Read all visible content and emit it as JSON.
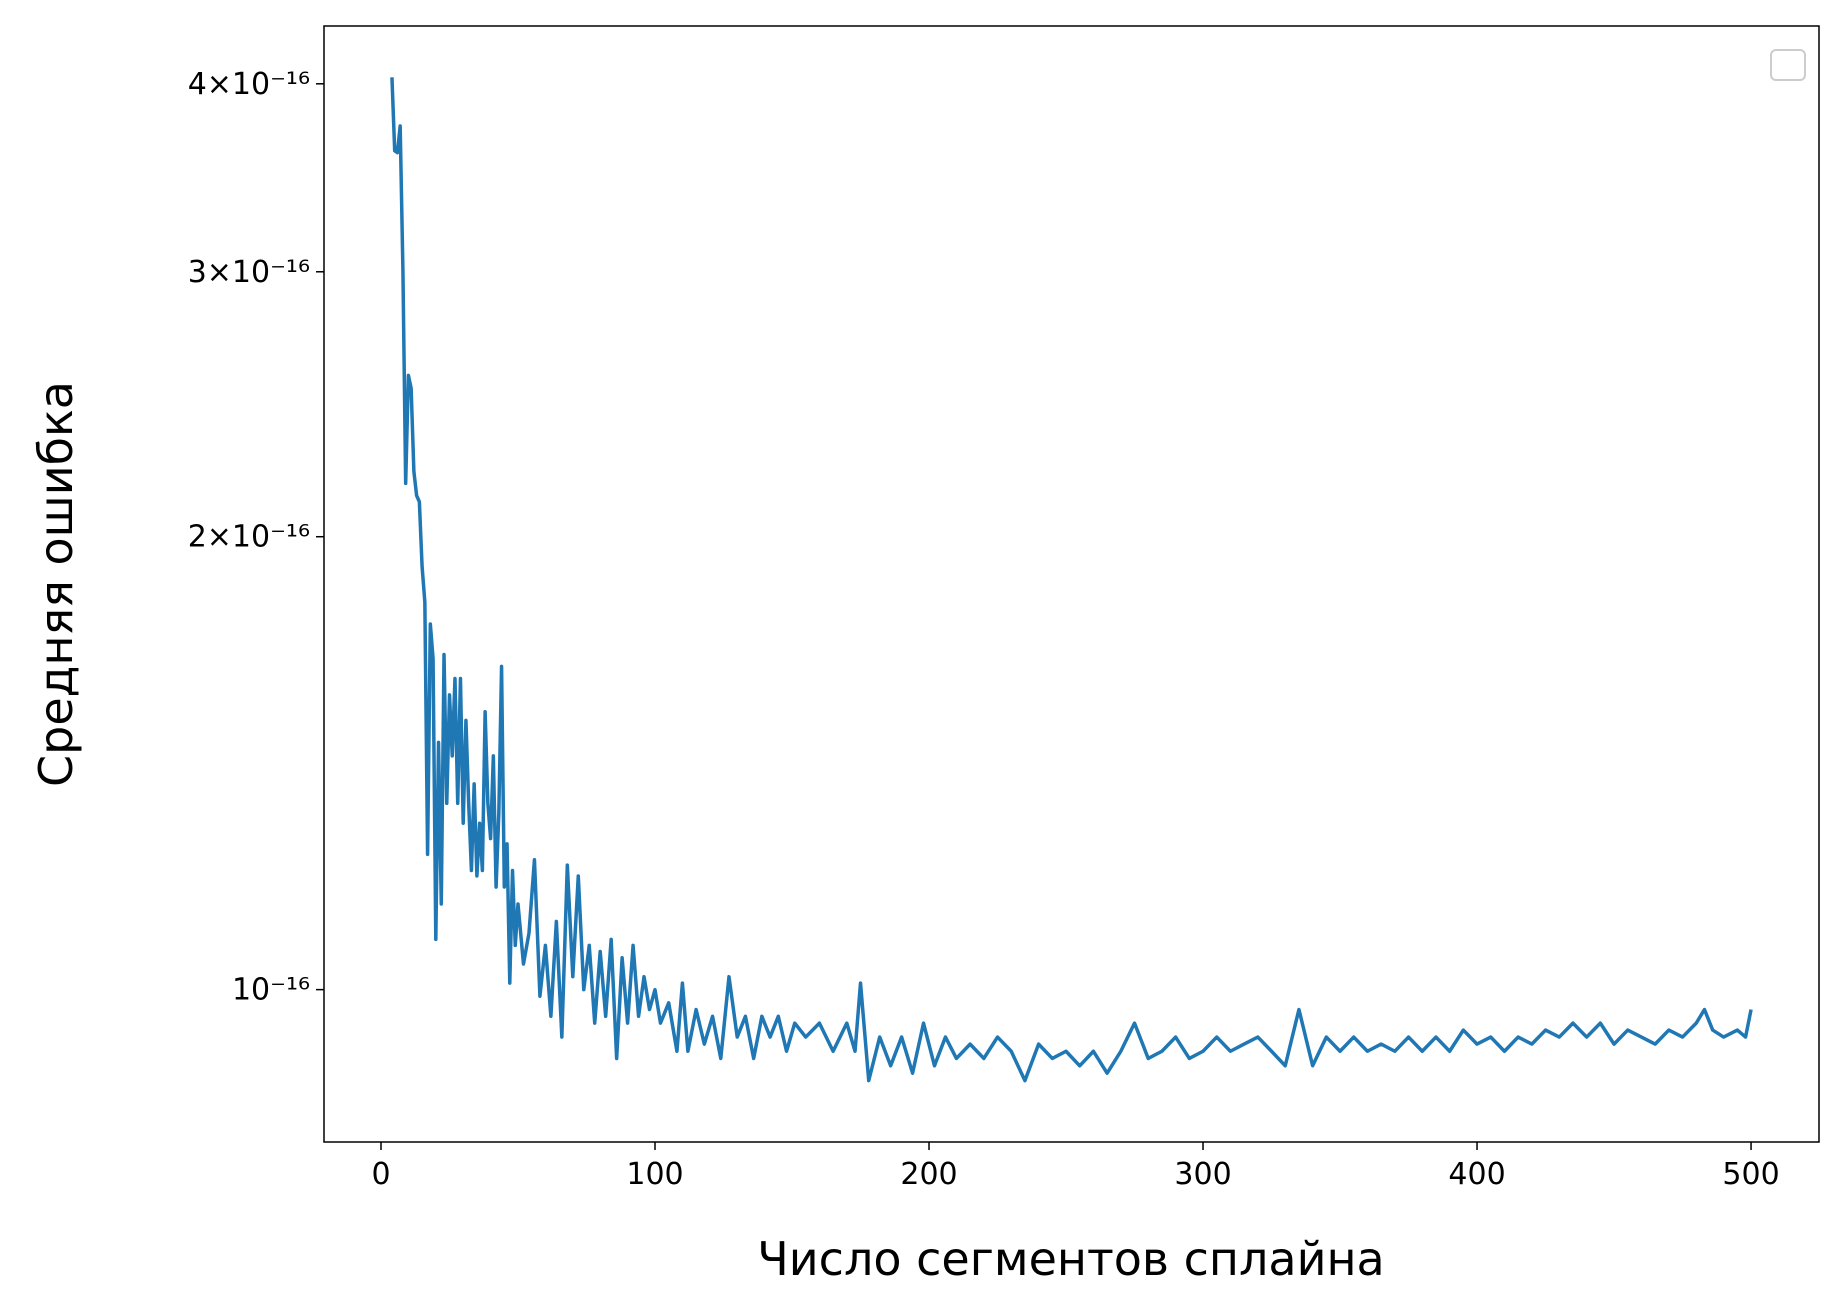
{
  "chart_data": {
    "type": "line",
    "xlabel": "Число сегментов сплайна",
    "ylabel": "Средняя ошибка",
    "yscale": "log",
    "legend": "upper right",
    "xlim": [
      -20.8,
      524.8
    ],
    "ylim": [
      7.92e-17,
      4.37e-16
    ],
    "xticks": [
      0,
      100,
      200,
      300,
      400,
      500
    ],
    "yticks": [
      {
        "value": 1e-16,
        "label": "10⁻¹⁶"
      },
      {
        "value": 2e-16,
        "label": "2×10⁻¹⁶"
      },
      {
        "value": 3e-16,
        "label": "3×10⁻¹⁶"
      },
      {
        "value": 4e-16,
        "label": "4×10⁻¹⁶"
      }
    ],
    "x": [
      4,
      5,
      6,
      7,
      8,
      9,
      10,
      11,
      12,
      13,
      14,
      15,
      16,
      17,
      18,
      19,
      20,
      21,
      22,
      23,
      24,
      25,
      26,
      27,
      28,
      29,
      30,
      31,
      32,
      33,
      34,
      35,
      36,
      37,
      38,
      39,
      40,
      41,
      42,
      43,
      44,
      45,
      46,
      47,
      48,
      49,
      50,
      52,
      54,
      56,
      58,
      60,
      62,
      64,
      66,
      68,
      70,
      72,
      74,
      76,
      78,
      80,
      82,
      84,
      86,
      88,
      90,
      92,
      94,
      96,
      98,
      100,
      102,
      105,
      108,
      110,
      112,
      115,
      118,
      121,
      124,
      127,
      130,
      133,
      136,
      139,
      142,
      145,
      148,
      151,
      155,
      160,
      165,
      170,
      173,
      175,
      178,
      182,
      186,
      190,
      194,
      198,
      202,
      206,
      210,
      215,
      220,
      225,
      230,
      235,
      240,
      245,
      250,
      255,
      260,
      265,
      270,
      275,
      280,
      285,
      290,
      295,
      300,
      305,
      310,
      315,
      320,
      325,
      330,
      335,
      340,
      345,
      350,
      355,
      360,
      365,
      370,
      375,
      380,
      385,
      390,
      395,
      400,
      405,
      410,
      415,
      420,
      425,
      430,
      435,
      440,
      445,
      450,
      455,
      460,
      465,
      470,
      475,
      480,
      483,
      486,
      490,
      495,
      498,
      500
    ],
    "series": [
      {
        "color": "#1f77b4",
        "values": [
          4.04e-16,
          3.61e-16,
          3.6e-16,
          3.75e-16,
          3.01e-16,
          2.17e-16,
          2.56e-16,
          2.51e-16,
          2.21e-16,
          2.13e-16,
          2.11e-16,
          1.91e-16,
          1.81e-16,
          1.23e-16,
          1.75e-16,
          1.66e-16,
          1.08e-16,
          1.46e-16,
          1.14e-16,
          1.67e-16,
          1.33e-16,
          1.57e-16,
          1.43e-16,
          1.61e-16,
          1.33e-16,
          1.61e-16,
          1.29e-16,
          1.51e-16,
          1.33e-16,
          1.2e-16,
          1.37e-16,
          1.19e-16,
          1.29e-16,
          1.2e-16,
          1.53e-16,
          1.33e-16,
          1.26e-16,
          1.43e-16,
          1.17e-16,
          1.31e-16,
          1.64e-16,
          1.17e-16,
          1.25e-16,
          1.01e-16,
          1.2e-16,
          1.07e-16,
          1.14e-16,
          1.04e-16,
          1.09e-16,
          1.22e-16,
          9.9e-17,
          1.07e-16,
          9.6e-17,
          1.11e-16,
          9.3e-17,
          1.21e-16,
          1.02e-16,
          1.19e-16,
          1e-16,
          1.07e-16,
          9.5e-17,
          1.06e-16,
          9.6e-17,
          1.08e-16,
          9e-17,
          1.05e-16,
          9.5e-17,
          1.07e-16,
          9.6e-17,
          1.02e-16,
          9.7e-17,
          1e-16,
          9.5e-17,
          9.8e-17,
          9.1e-17,
          1.01e-16,
          9.1e-17,
          9.7e-17,
          9.2e-17,
          9.6e-17,
          9e-17,
          1.02e-16,
          9.3e-17,
          9.6e-17,
          9e-17,
          9.6e-17,
          9.3e-17,
          9.6e-17,
          9.1e-17,
          9.5e-17,
          9.3e-17,
          9.5e-17,
          9.1e-17,
          9.5e-17,
          9.1e-17,
          1.01e-16,
          8.7e-17,
          9.3e-17,
          8.9e-17,
          9.3e-17,
          8.8e-17,
          9.5e-17,
          8.9e-17,
          9.3e-17,
          9e-17,
          9.2e-17,
          9e-17,
          9.3e-17,
          9.1e-17,
          8.7e-17,
          9.2e-17,
          9e-17,
          9.1e-17,
          8.9e-17,
          9.1e-17,
          8.8e-17,
          9.1e-17,
          9.5e-17,
          9e-17,
          9.1e-17,
          9.3e-17,
          9e-17,
          9.1e-17,
          9.3e-17,
          9.1e-17,
          9.2e-17,
          9.3e-17,
          9.1e-17,
          8.9e-17,
          9.7e-17,
          8.9e-17,
          9.3e-17,
          9.1e-17,
          9.3e-17,
          9.1e-17,
          9.2e-17,
          9.1e-17,
          9.3e-17,
          9.1e-17,
          9.3e-17,
          9.1e-17,
          9.4e-17,
          9.2e-17,
          9.3e-17,
          9.1e-17,
          9.3e-17,
          9.2e-17,
          9.4e-17,
          9.3e-17,
          9.5e-17,
          9.3e-17,
          9.5e-17,
          9.2e-17,
          9.4e-17,
          9.3e-17,
          9.2e-17,
          9.4e-17,
          9.3e-17,
          9.5e-17,
          9.7e-17,
          9.4e-17,
          9.3e-17,
          9.4e-17,
          9.3e-17,
          9.7e-17
        ]
      }
    ]
  }
}
